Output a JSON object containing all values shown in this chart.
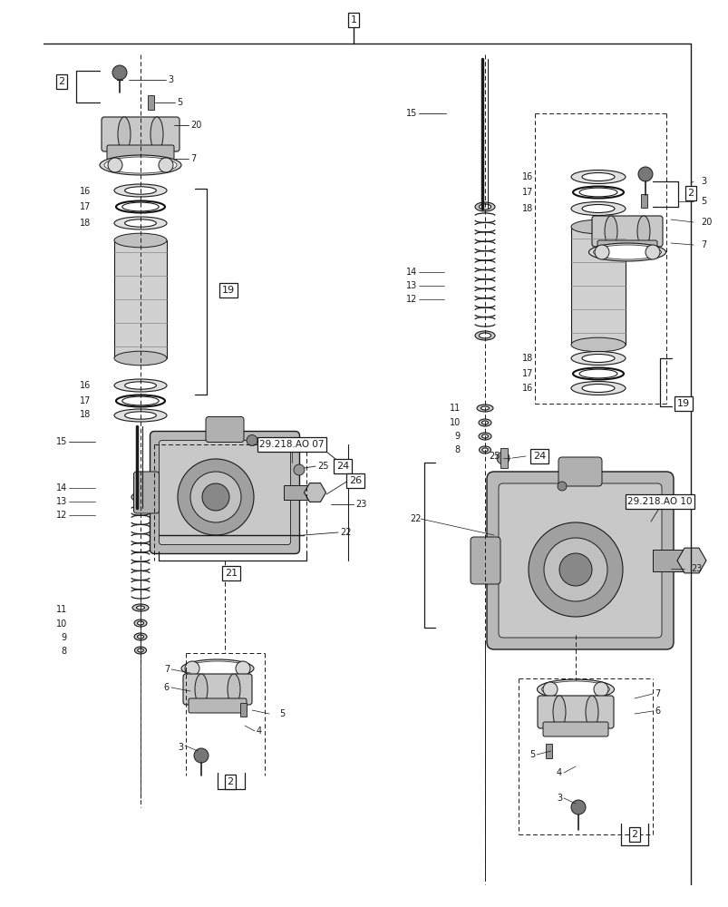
{
  "bg_color": "#ffffff",
  "line_color": "#1a1a1a",
  "fig_width": 8.04,
  "fig_height": 10.0,
  "dpi": 100
}
